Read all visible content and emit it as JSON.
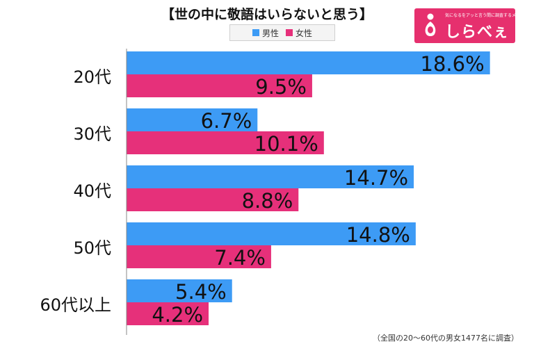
{
  "title": "【世の中に敬語はいらないと思う】",
  "logo": {
    "name": "しらべぇ",
    "tagline": "気になるをアッと言う間に調査するメディア"
  },
  "colors": {
    "male": "#3d9bf5",
    "female": "#e6307a",
    "axis": "#888888",
    "background": "#ffffff"
  },
  "footnote": "（全国の20〜60代の男女1477名に調査）",
  "chart_data": {
    "type": "bar",
    "orientation": "horizontal",
    "title": "【世の中に敬語はいらないと思う】",
    "categories": [
      "20代",
      "30代",
      "40代",
      "50代",
      "60代以上"
    ],
    "series": [
      {
        "name": "男性",
        "color": "#3d9bf5",
        "values": [
          18.6,
          6.7,
          14.7,
          14.8,
          5.4
        ],
        "labels": [
          "18.6%",
          "6.7%",
          "14.7%",
          "14.8%",
          "5.4%"
        ]
      },
      {
        "name": "女性",
        "color": "#e6307a",
        "values": [
          9.5,
          10.1,
          8.8,
          7.4,
          4.2
        ],
        "labels": [
          "9.5%",
          "10.1%",
          "8.8%",
          "7.4%",
          "4.2%"
        ]
      }
    ],
    "xlim": [
      0,
      20
    ],
    "legend": "top-center",
    "grid": false
  }
}
